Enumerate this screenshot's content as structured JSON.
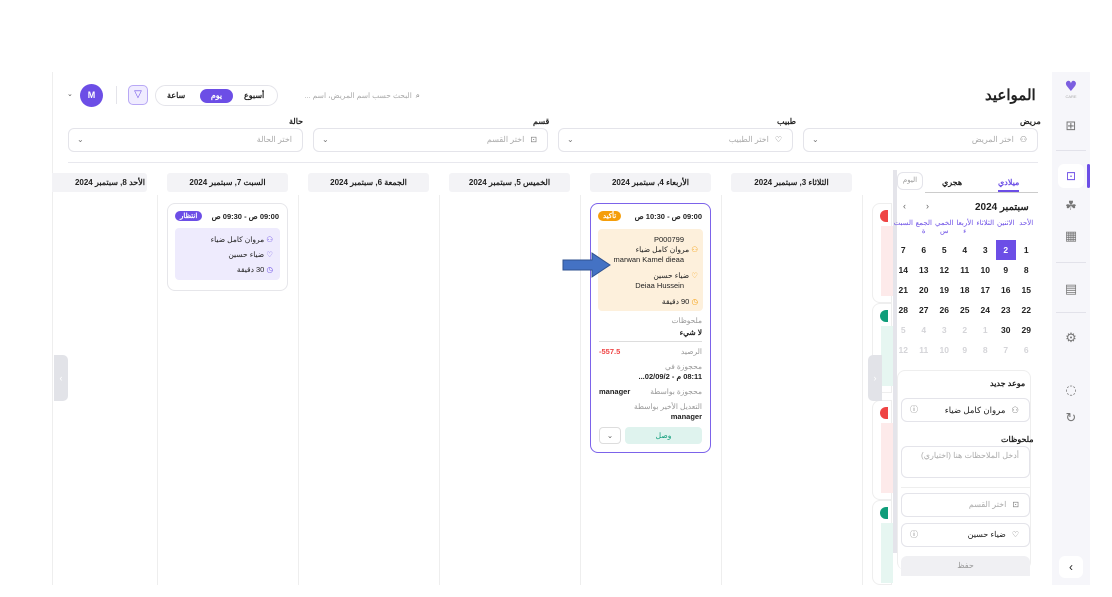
{
  "header": {
    "title": "المواعيد",
    "search_placeholder": "البحث حسب اسم المريض، اسم ...",
    "view_modes": [
      "أسبوع",
      "يوم",
      "ساعة"
    ],
    "active_view": "يوم",
    "avatar": "M"
  },
  "filters": [
    {
      "label": "مريض",
      "placeholder": "اختر المريض"
    },
    {
      "label": "طبيب",
      "placeholder": "اختر الطبيب"
    },
    {
      "label": "قسم",
      "placeholder": "اختر القسم"
    },
    {
      "label": "حالة",
      "placeholder": "اختر الحالة"
    }
  ],
  "days": [
    "الثلاثاء 3, سبتمبر 2024",
    "الأربعاء 4, سبتمبر 2024",
    "الخميس 5, سبتمبر 2024",
    "الجمعة 6, سبتمبر 2024",
    "السبت 7, سبتمبر 2024",
    "الأحد 8, سبتمبر 2024"
  ],
  "appointment_main": {
    "time": "09:00 ص - 10:30 ص",
    "status": "تأكيد",
    "status_color": "#f59e0b",
    "patient_id": "P000799",
    "patient_ar": "مروان كامل ضياء",
    "patient_en": "marwan Kamel dieaa",
    "doctor_ar": "ضياء حسين",
    "doctor_en": "Deiaa Hussein",
    "duration": "90 دقيقة",
    "notes_label": "ملحوظات",
    "notes": "لا شيء",
    "balance_label": "الرصيد",
    "balance": "-557.5",
    "booked_at_label": "محجوزة في",
    "booked_at": "08:11 م - 02/09/2...",
    "booked_by_label": "محجوزة بواسطة",
    "booked_by": "manager",
    "modified_by_label": "التعديل الأخير بواسطة",
    "modified_by": "manager",
    "arrive_button": "وصل"
  },
  "appointment_sat": {
    "time": "09:00 ص - 09:30 ص",
    "status": "انتظار",
    "status_color": "#6c4ee6",
    "patient": "مروان كامل ضياء",
    "doctor": "ضياء حسين",
    "duration": "30 دقيقة"
  },
  "calendar": {
    "tabs": [
      "ميلادي",
      "هجري"
    ],
    "today_button": "اليوم",
    "month": "سبتمبر 2024",
    "weekdays": [
      "الأحد",
      "الاثنين",
      "الثلاثاء",
      "الأربعا ء",
      "الخمي س",
      "الجمع ة",
      "السبت"
    ],
    "weeks": [
      [
        "1",
        "2",
        "3",
        "4",
        "5",
        "6",
        "7"
      ],
      [
        "8",
        "9",
        "10",
        "11",
        "12",
        "13",
        "14"
      ],
      [
        "15",
        "16",
        "17",
        "18",
        "19",
        "20",
        "21"
      ],
      [
        "22",
        "23",
        "24",
        "25",
        "26",
        "27",
        "28"
      ],
      [
        "29",
        "30",
        "1",
        "2",
        "3",
        "4",
        "5"
      ],
      [
        "6",
        "7",
        "8",
        "9",
        "10",
        "11",
        "12"
      ]
    ],
    "selected": "2",
    "accent": "#6c4ee6"
  },
  "new_appointment": {
    "title": "موعد جديد",
    "patient": "مروان كامل ضياء",
    "notes_label": "ملحوظات",
    "notes_placeholder": "أدخل الملاحظات هنا (اختياري)",
    "department_placeholder": "اختر القسم",
    "doctor": "ضياء حسين",
    "save_button": "حفظ"
  },
  "logo_text": "CARE"
}
